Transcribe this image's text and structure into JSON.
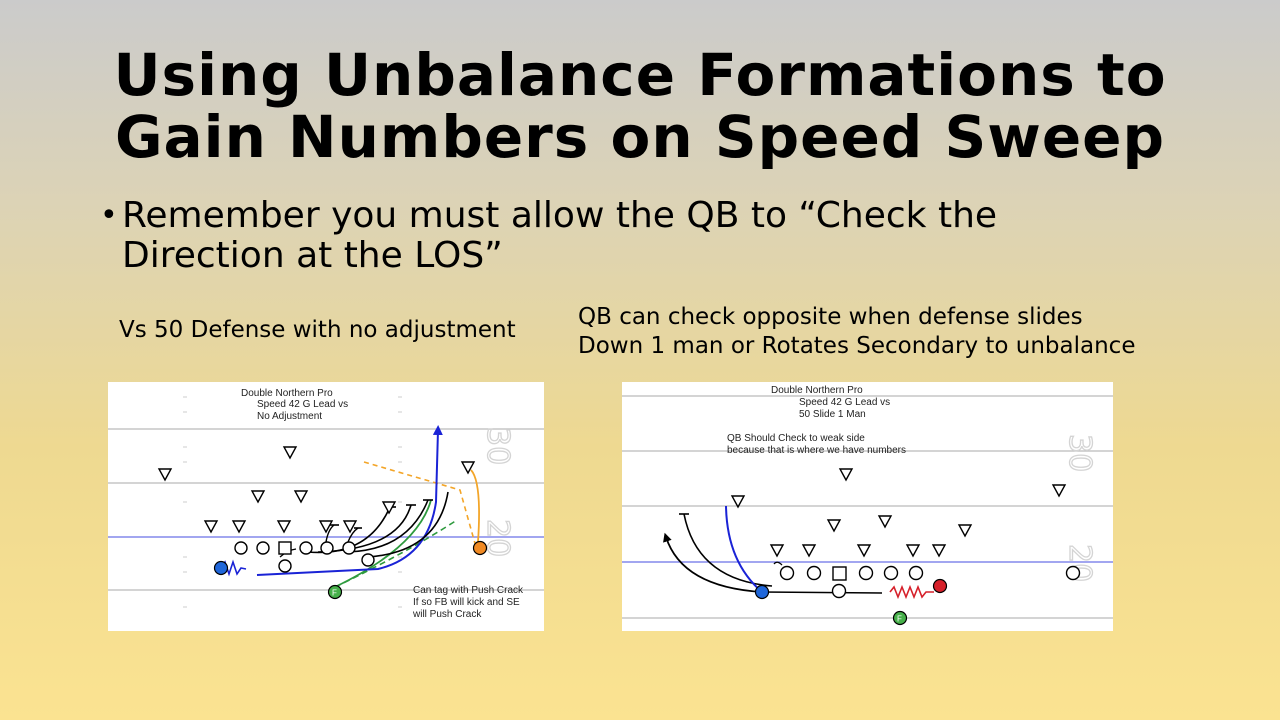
{
  "title": {
    "line1": "Using Unbalance Formations to",
    "line2": "Gain Numbers on Speed Sweep"
  },
  "bullet": {
    "marker": "•",
    "line1": "Remember you must allow the QB to “Check the",
    "line2": "Direction at the LOS”"
  },
  "left_panel": {
    "caption": "Vs 50 Defense with no adjustment",
    "heading": [
      "Double Northern Pro",
      "Speed 42 G Lead vs",
      "No Adjustment"
    ],
    "note": [
      "Can tag with Push Crack",
      "If so FB will kick and SE",
      "will Push Crack"
    ],
    "fb_label": "F",
    "yard_labels": [
      "30",
      "20"
    ]
  },
  "right_panel": {
    "caption_line1": "QB can check opposite when defense slides",
    "caption_line2": "Down 1 man or Rotates Secondary to unbalance",
    "heading": [
      "Double Northern Pro",
      "Speed 42 G Lead vs",
      "50 Slide 1 Man"
    ],
    "subheading": [
      "QB Should Check to weak side",
      "because that is where we have numbers"
    ],
    "fb_label": "F",
    "yard_labels": [
      "30",
      "20"
    ]
  },
  "colors": {
    "los_line": "#6b72e6",
    "ballcarrier": "#1f66d9",
    "fullback": "#46b04a",
    "orange_player": "#f08a24",
    "red_player": "#d6202a",
    "orange_route": "#f3a528",
    "green_route": "#2e9a3e",
    "blue_route": "#1a23d6"
  }
}
